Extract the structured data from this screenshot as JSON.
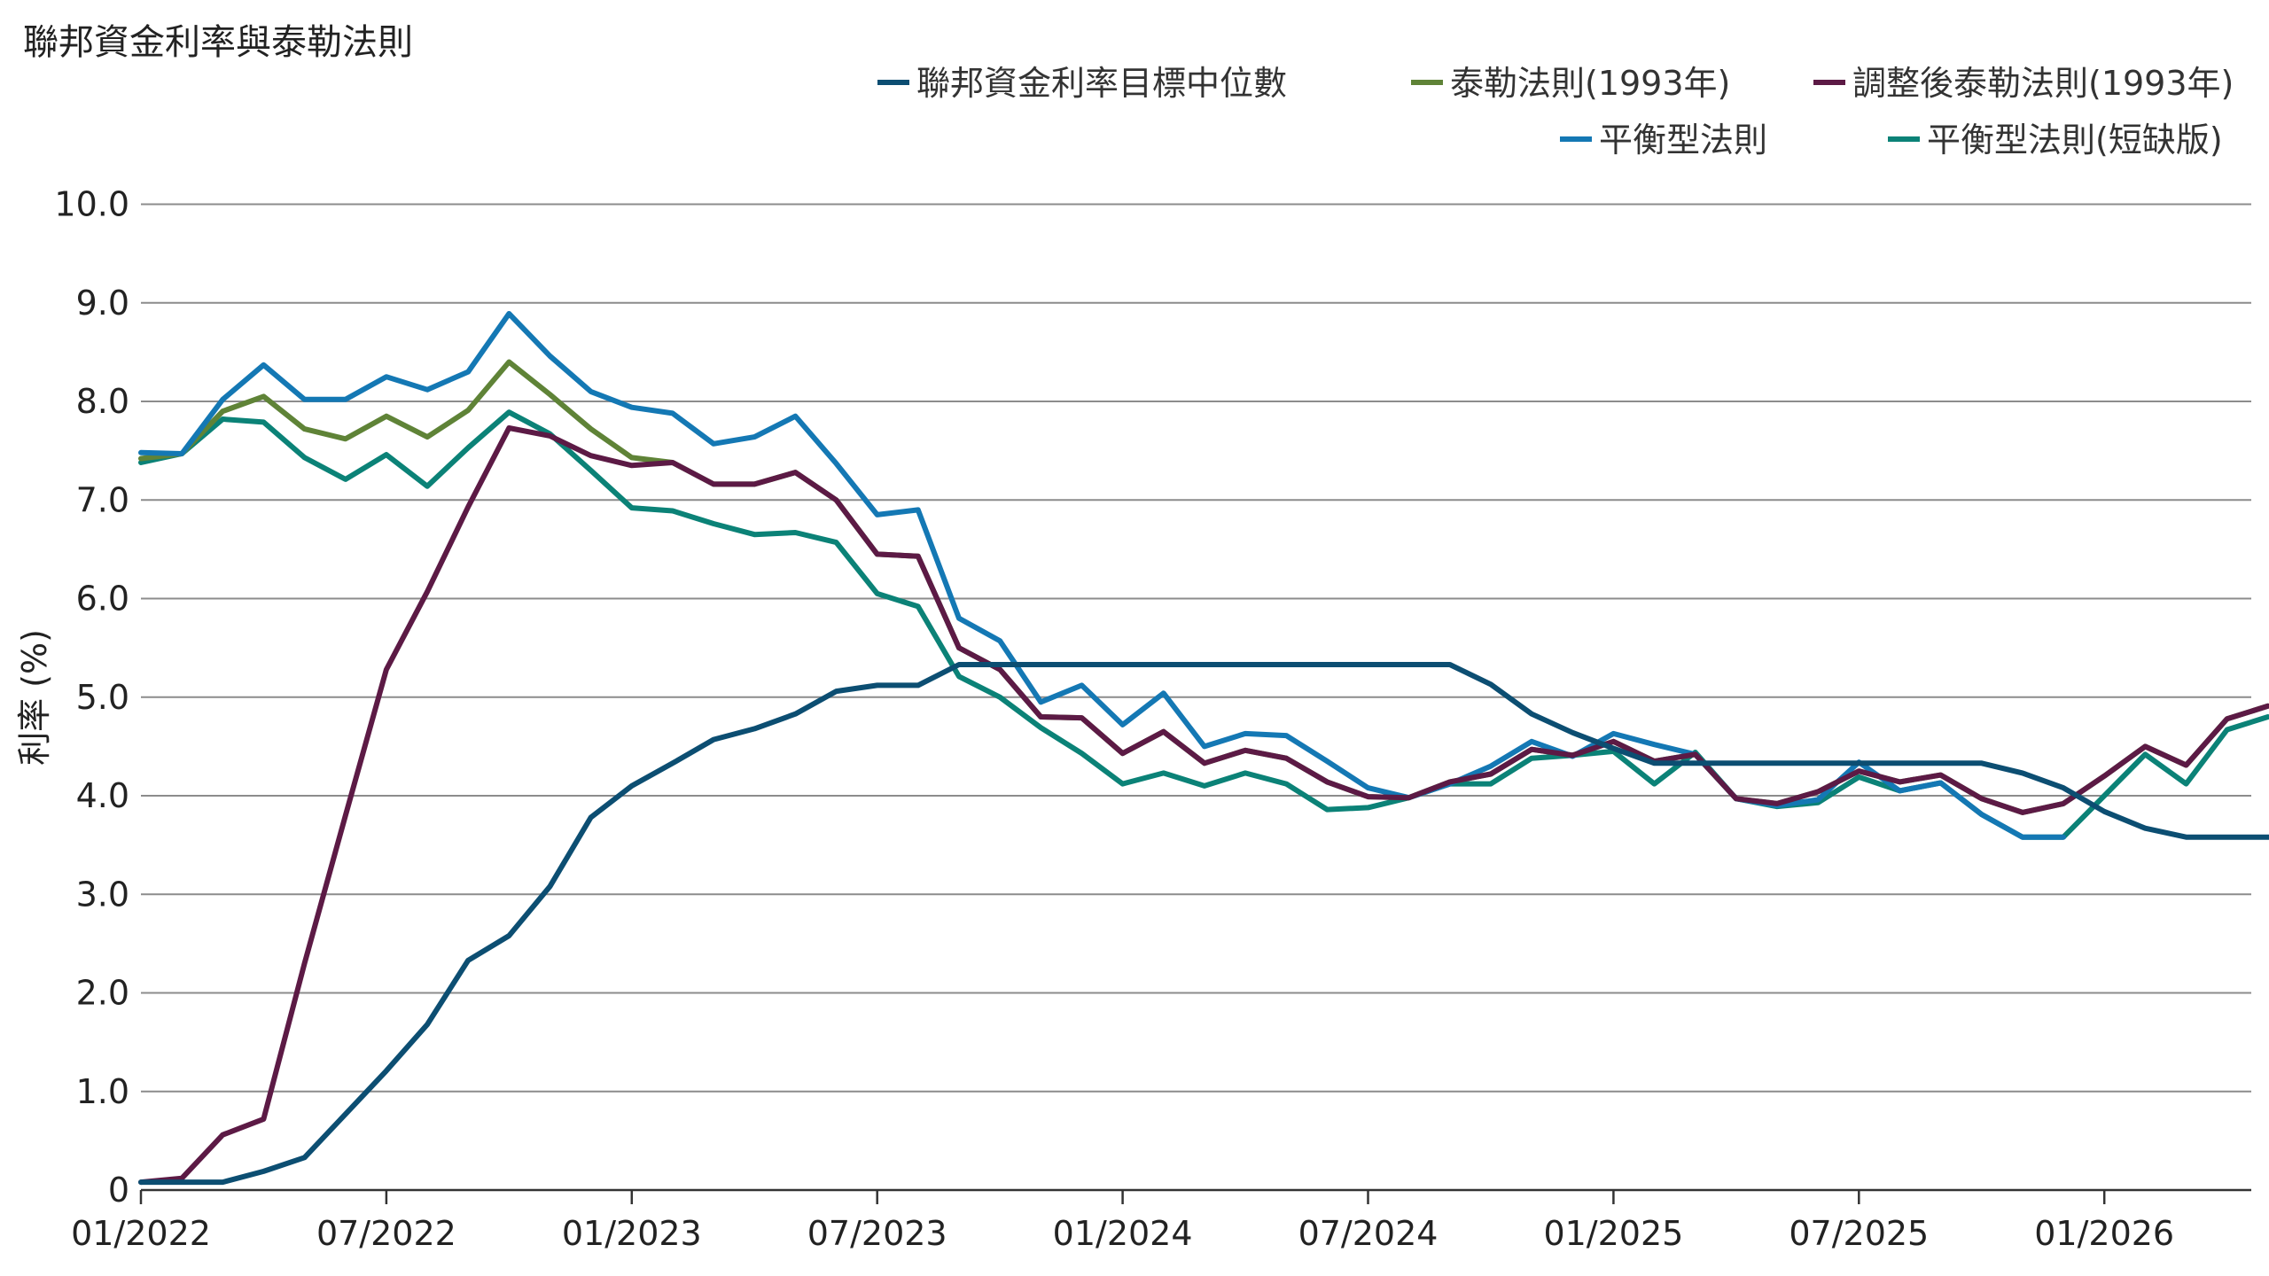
{
  "chart_data": {
    "type": "line",
    "title": "聯邦資金利率與泰勒法則",
    "ylabel": "利率 (%)",
    "xlabel": "",
    "ylim": [
      0,
      10
    ],
    "yticks": [
      0,
      1,
      2,
      3,
      4,
      5,
      6,
      7,
      8,
      9,
      10
    ],
    "ytick_labels": [
      "0",
      "1.0",
      "2.0",
      "3.0",
      "4.0",
      "5.0",
      "6.0",
      "7.0",
      "8.0",
      "9.0",
      "10.0"
    ],
    "xtick_labels": [
      "01/2022",
      "07/2022",
      "01/2023",
      "07/2023",
      "01/2024",
      "07/2024",
      "01/2025",
      "07/2025",
      "01/2026"
    ],
    "xtick_months": [
      0,
      6,
      12,
      18,
      24,
      30,
      36,
      42,
      48
    ],
    "x_start": "01/2022",
    "grid": "horizontal",
    "legend_position": "top-right",
    "series": [
      {
        "name": "聯邦資金利率目標中位數",
        "color": "#0c4e72",
        "points": [
          [
            0,
            0.08
          ],
          [
            1,
            0.08
          ],
          [
            2,
            0.08
          ],
          [
            3,
            0.19
          ],
          [
            4,
            0.33
          ],
          [
            5,
            0.77
          ],
          [
            6,
            1.21
          ],
          [
            7,
            1.68
          ],
          [
            8,
            2.33
          ],
          [
            9,
            2.58
          ],
          [
            10,
            3.08
          ],
          [
            11,
            3.78
          ],
          [
            12,
            4.1
          ],
          [
            13,
            4.33
          ],
          [
            14,
            4.57
          ],
          [
            15,
            4.68
          ],
          [
            16,
            4.83
          ],
          [
            17,
            5.06
          ],
          [
            18,
            5.12
          ],
          [
            19,
            5.12
          ],
          [
            20,
            5.33
          ],
          [
            21,
            5.33
          ],
          [
            22,
            5.33
          ],
          [
            23,
            5.33
          ],
          [
            24,
            5.33
          ],
          [
            25,
            5.33
          ],
          [
            26,
            5.33
          ],
          [
            27,
            5.33
          ],
          [
            28,
            5.33
          ],
          [
            29,
            5.33
          ],
          [
            30,
            5.33
          ],
          [
            31,
            5.33
          ],
          [
            32,
            5.33
          ],
          [
            33,
            5.13
          ],
          [
            34,
            4.83
          ],
          [
            35,
            4.64
          ],
          [
            36,
            4.48
          ],
          [
            37,
            4.33
          ],
          [
            38,
            4.33
          ],
          [
            39,
            4.33
          ],
          [
            40,
            4.33
          ],
          [
            41,
            4.33
          ],
          [
            42,
            4.33
          ],
          [
            43,
            4.33
          ],
          [
            44,
            4.33
          ],
          [
            45,
            4.33
          ],
          [
            46,
            4.23
          ],
          [
            47,
            4.08
          ],
          [
            48,
            3.84
          ],
          [
            49,
            3.67
          ],
          [
            50,
            3.58
          ],
          [
            51,
            3.58
          ],
          [
            52,
            3.58
          ],
          [
            53,
            3.58
          ],
          [
            54,
            3.58
          ],
          [
            55,
            3.58
          ]
        ]
      },
      {
        "name": "泰勒法則(1993年)",
        "color": "#5f8337",
        "points": [
          [
            0,
            7.42
          ],
          [
            1,
            7.47
          ],
          [
            2,
            7.9
          ],
          [
            3,
            8.05
          ],
          [
            4,
            7.72
          ],
          [
            5,
            7.62
          ],
          [
            6,
            7.85
          ],
          [
            7,
            7.64
          ],
          [
            8,
            7.91
          ],
          [
            9,
            8.4
          ],
          [
            10,
            8.07
          ],
          [
            11,
            7.72
          ],
          [
            12,
            7.43
          ],
          [
            13,
            7.38
          ],
          [
            14,
            7.16
          ],
          [
            15,
            7.16
          ],
          [
            16,
            7.28
          ],
          [
            17,
            7.0
          ],
          [
            18,
            6.45
          ],
          [
            19,
            6.43
          ],
          [
            20,
            5.5
          ],
          [
            21,
            5.28
          ],
          [
            22,
            4.8
          ],
          [
            23,
            4.79
          ],
          [
            24,
            4.43
          ],
          [
            25,
            4.65
          ],
          [
            26,
            4.33
          ],
          [
            27,
            4.46
          ],
          [
            28,
            4.38
          ],
          [
            29,
            4.14
          ],
          [
            30,
            3.99
          ],
          [
            31,
            3.98
          ],
          [
            32,
            4.14
          ],
          [
            33,
            4.22
          ],
          [
            34,
            4.47
          ],
          [
            35,
            4.41
          ],
          [
            36,
            4.55
          ],
          [
            37,
            4.35
          ],
          [
            38,
            4.42
          ],
          [
            39,
            3.97
          ],
          [
            40,
            3.92
          ],
          [
            41,
            4.04
          ],
          [
            42,
            4.25
          ],
          [
            43,
            4.14
          ],
          [
            44,
            4.21
          ],
          [
            45,
            3.97
          ],
          [
            46,
            3.83
          ],
          [
            47,
            3.92
          ],
          [
            48,
            4.2
          ],
          [
            49,
            4.5
          ],
          [
            50,
            4.31
          ],
          [
            51,
            4.78
          ],
          [
            52,
            4.91
          ]
        ]
      },
      {
        "name": "調整後泰勒法則(1993年)",
        "color": "#5c1a45",
        "points": [
          [
            0,
            0.08
          ],
          [
            1,
            0.12
          ],
          [
            2,
            0.56
          ],
          [
            3,
            0.72
          ],
          [
            4,
            2.3
          ],
          [
            5,
            3.8
          ],
          [
            6,
            5.28
          ],
          [
            7,
            6.07
          ],
          [
            8,
            6.93
          ],
          [
            9,
            7.73
          ],
          [
            10,
            7.65
          ],
          [
            11,
            7.45
          ],
          [
            12,
            7.35
          ],
          [
            13,
            7.38
          ],
          [
            14,
            7.16
          ],
          [
            15,
            7.16
          ],
          [
            16,
            7.28
          ],
          [
            17,
            7.0
          ],
          [
            18,
            6.45
          ],
          [
            19,
            6.43
          ],
          [
            20,
            5.5
          ],
          [
            21,
            5.28
          ],
          [
            22,
            4.8
          ],
          [
            23,
            4.79
          ],
          [
            24,
            4.43
          ],
          [
            25,
            4.65
          ],
          [
            26,
            4.33
          ],
          [
            27,
            4.46
          ],
          [
            28,
            4.38
          ],
          [
            29,
            4.14
          ],
          [
            30,
            3.99
          ],
          [
            31,
            3.98
          ],
          [
            32,
            4.14
          ],
          [
            33,
            4.22
          ],
          [
            34,
            4.47
          ],
          [
            35,
            4.41
          ],
          [
            36,
            4.55
          ],
          [
            37,
            4.35
          ],
          [
            38,
            4.42
          ],
          [
            39,
            3.97
          ],
          [
            40,
            3.92
          ],
          [
            41,
            4.04
          ],
          [
            42,
            4.25
          ],
          [
            43,
            4.14
          ],
          [
            44,
            4.21
          ],
          [
            45,
            3.97
          ],
          [
            46,
            3.83
          ],
          [
            47,
            3.92
          ],
          [
            48,
            4.2
          ],
          [
            49,
            4.5
          ],
          [
            50,
            4.31
          ],
          [
            51,
            4.78
          ],
          [
            52,
            4.91
          ]
        ]
      },
      {
        "name": "平衡型法則",
        "color": "#1478b4",
        "points": [
          [
            0,
            7.48
          ],
          [
            1,
            7.47
          ],
          [
            2,
            8.02
          ],
          [
            3,
            8.37
          ],
          [
            4,
            8.02
          ],
          [
            5,
            8.02
          ],
          [
            6,
            8.25
          ],
          [
            7,
            8.12
          ],
          [
            8,
            8.3
          ],
          [
            9,
            8.89
          ],
          [
            10,
            8.46
          ],
          [
            11,
            8.1
          ],
          [
            12,
            7.94
          ],
          [
            13,
            7.88
          ],
          [
            14,
            7.57
          ],
          [
            15,
            7.64
          ],
          [
            16,
            7.85
          ],
          [
            17,
            7.37
          ],
          [
            18,
            6.85
          ],
          [
            19,
            6.9
          ],
          [
            20,
            5.8
          ],
          [
            21,
            5.57
          ],
          [
            22,
            4.95
          ],
          [
            23,
            5.12
          ],
          [
            24,
            4.72
          ],
          [
            25,
            5.04
          ],
          [
            26,
            4.5
          ],
          [
            27,
            4.63
          ],
          [
            28,
            4.61
          ],
          [
            29,
            4.35
          ],
          [
            30,
            4.08
          ],
          [
            31,
            3.98
          ],
          [
            32,
            4.12
          ],
          [
            33,
            4.3
          ],
          [
            34,
            4.55
          ],
          [
            35,
            4.4
          ],
          [
            36,
            4.63
          ],
          [
            37,
            4.52
          ],
          [
            38,
            4.42
          ],
          [
            39,
            3.97
          ],
          [
            40,
            3.9
          ],
          [
            41,
            3.96
          ],
          [
            42,
            4.34
          ],
          [
            43,
            4.05
          ],
          [
            44,
            4.13
          ],
          [
            45,
            3.81
          ],
          [
            46,
            3.58
          ],
          [
            47,
            3.58
          ]
        ]
      },
      {
        "name": "平衡型法則(短缺版)",
        "color": "#0b8277",
        "points": [
          [
            0,
            7.38
          ],
          [
            1,
            7.47
          ],
          [
            2,
            7.82
          ],
          [
            3,
            7.79
          ],
          [
            4,
            7.43
          ],
          [
            5,
            7.21
          ],
          [
            6,
            7.46
          ],
          [
            7,
            7.14
          ],
          [
            8,
            7.53
          ],
          [
            9,
            7.89
          ],
          [
            10,
            7.67
          ],
          [
            11,
            7.3
          ],
          [
            12,
            6.92
          ],
          [
            13,
            6.89
          ],
          [
            14,
            6.76
          ],
          [
            15,
            6.65
          ],
          [
            16,
            6.67
          ],
          [
            17,
            6.57
          ],
          [
            18,
            6.05
          ],
          [
            19,
            5.92
          ],
          [
            20,
            5.21
          ],
          [
            21,
            5.0
          ],
          [
            22,
            4.69
          ],
          [
            23,
            4.43
          ],
          [
            24,
            4.12
          ],
          [
            25,
            4.23
          ],
          [
            26,
            4.1
          ],
          [
            27,
            4.23
          ],
          [
            28,
            4.12
          ],
          [
            29,
            3.86
          ],
          [
            30,
            3.88
          ],
          [
            31,
            3.98
          ],
          [
            32,
            4.12
          ],
          [
            33,
            4.12
          ],
          [
            34,
            4.38
          ],
          [
            35,
            4.41
          ],
          [
            36,
            4.45
          ],
          [
            37,
            4.12
          ],
          [
            38,
            4.44
          ],
          [
            39,
            3.97
          ],
          [
            40,
            3.89
          ],
          [
            41,
            3.93
          ],
          [
            42,
            4.19
          ],
          [
            43,
            4.05
          ],
          [
            44,
            4.13
          ],
          [
            45,
            3.81
          ],
          [
            46,
            3.58
          ],
          [
            47,
            3.58
          ],
          [
            48,
            4.0
          ],
          [
            49,
            4.42
          ],
          [
            50,
            4.12
          ],
          [
            51,
            4.67
          ],
          [
            52,
            4.8
          ]
        ]
      }
    ]
  }
}
